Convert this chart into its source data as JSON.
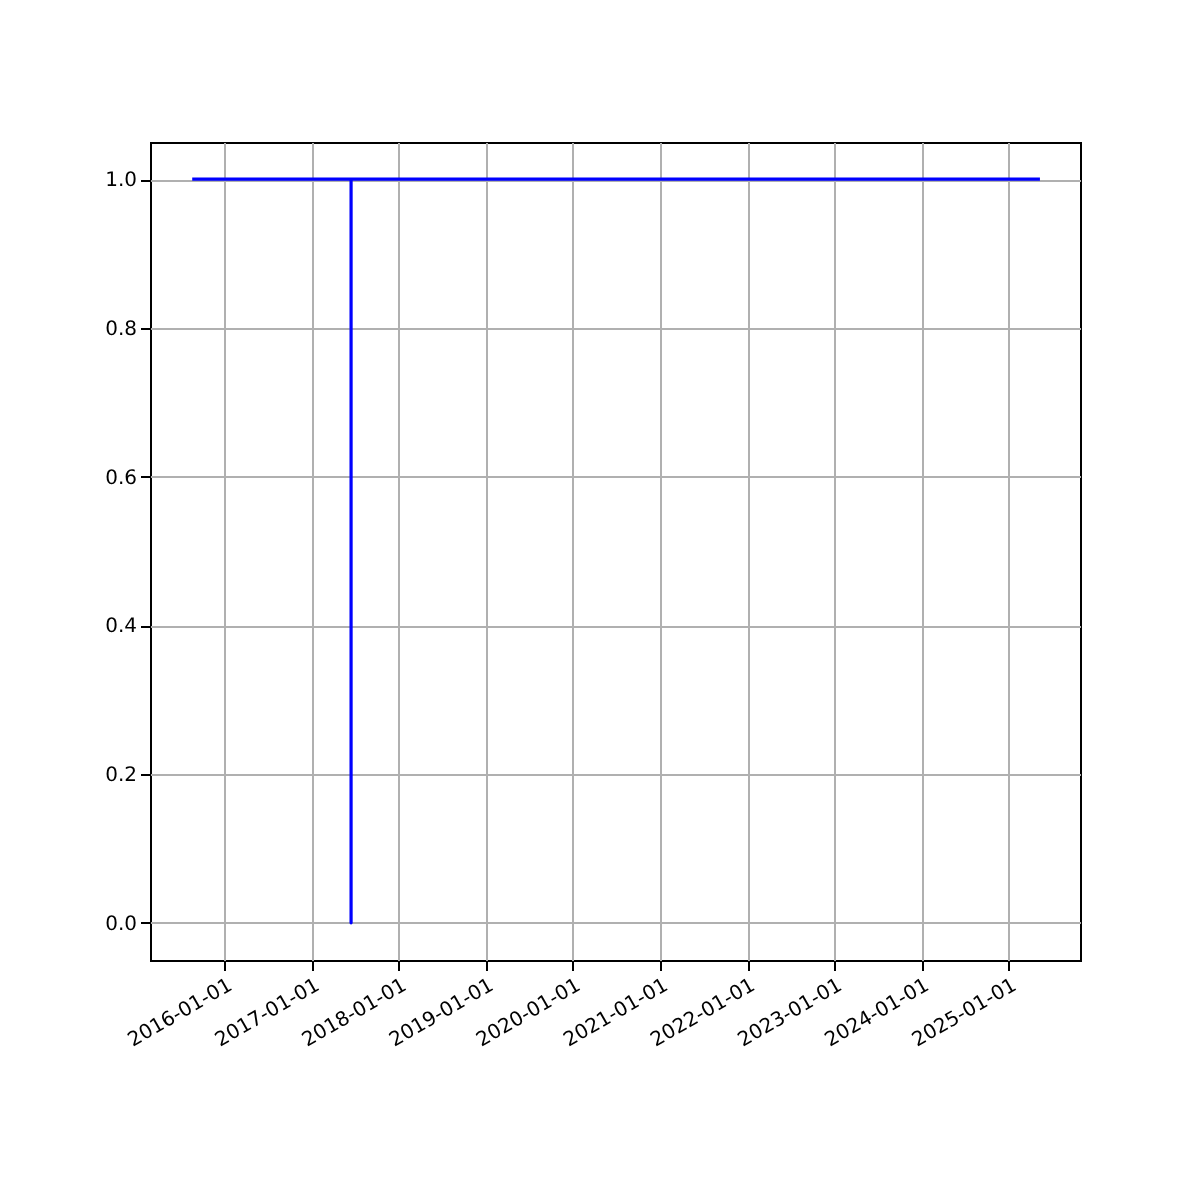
{
  "chart_data": {
    "type": "line",
    "x": [
      "2015-08-19",
      "2017-06-15",
      "2017-06-15",
      "2017-06-15",
      "2025-05-12"
    ],
    "series": [
      {
        "color": "#0000ff",
        "values": [
          1,
          1,
          0,
          1,
          1
        ]
      }
    ],
    "xlim": [
      "2015-02-23",
      "2025-10-27"
    ],
    "xticks": [
      "2016-01-01",
      "2017-01-01",
      "2018-01-01",
      "2019-01-01",
      "2020-01-01",
      "2021-01-01",
      "2022-01-01",
      "2023-01-01",
      "2024-01-01",
      "2025-01-01"
    ],
    "ylim": [
      -0.05,
      1.05
    ],
    "yticks": [
      {
        "value": 0,
        "label": "0.0"
      },
      {
        "value": 0.2,
        "label": "0.2"
      },
      {
        "value": 0.4,
        "label": "0.4"
      },
      {
        "value": 0.6,
        "label": "0.6"
      },
      {
        "value": 0.8,
        "label": "0.8"
      },
      {
        "value": 1,
        "label": "1.0"
      }
    ],
    "grid": true,
    "marker": "none",
    "line_style": "solid"
  }
}
